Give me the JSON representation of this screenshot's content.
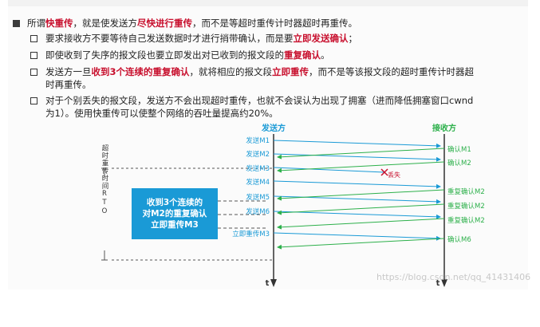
{
  "bullets": {
    "main": {
      "pre": "所谓",
      "kw1": "快重传",
      "mid": "，就是使发送方",
      "kw2": "尽快进行重传",
      "post": "，而不是等超时重传计时器超时再重传。"
    },
    "sub1": {
      "pre": "要求接收方不要等待自己发送数据时才进行捎带确认，而是要",
      "kw": "立即发送确认",
      "post": "；"
    },
    "sub2": {
      "pre": "即使收到了失序的报文段也要立即发出对已收到的报文段的",
      "kw": "重复确认",
      "post": "。"
    },
    "sub3": {
      "pre": "发送方一旦",
      "kw1": "收到3个连续的重复确认",
      "mid": "，就将相应的报文段",
      "kw2": "立即重传",
      "post1": "，而不是等该报文段的超时重传计时器超",
      "post2": "时再重传。"
    },
    "sub4": {
      "line1": "对于个别丢失的报文段，发送方不会出现超时重传，也就不会误认为出现了拥塞（进而降低拥塞窗口cwnd",
      "line2": "为1）。使用快重传可以使整个网络的吞吐量提高约20%。"
    }
  },
  "diagram": {
    "sender_label": "发送方",
    "receiver_label": "接收方",
    "time_label": "t",
    "rto_label": "超时重传时间RTO",
    "lost_label": "丢失",
    "sends": [
      "发送M1",
      "发送M2",
      "发送M3",
      "发送M4",
      "发送M5",
      "发送M6"
    ],
    "retransmit": "立即重传M3",
    "acks": [
      "确认M1",
      "确认M2",
      "重复确认M2",
      "重复确认M2",
      "重复确认M2",
      "确认M6"
    ],
    "box_line1": "收到3个连续的",
    "box_line2": "对M2的重复确认",
    "box_line3": "立即重传M3"
  },
  "colors": {
    "send": "#1a9ad6",
    "ack": "#2db04b",
    "highlight": "#c8102e"
  },
  "watermark": "https://blog.csdn.net/qq_41431406"
}
